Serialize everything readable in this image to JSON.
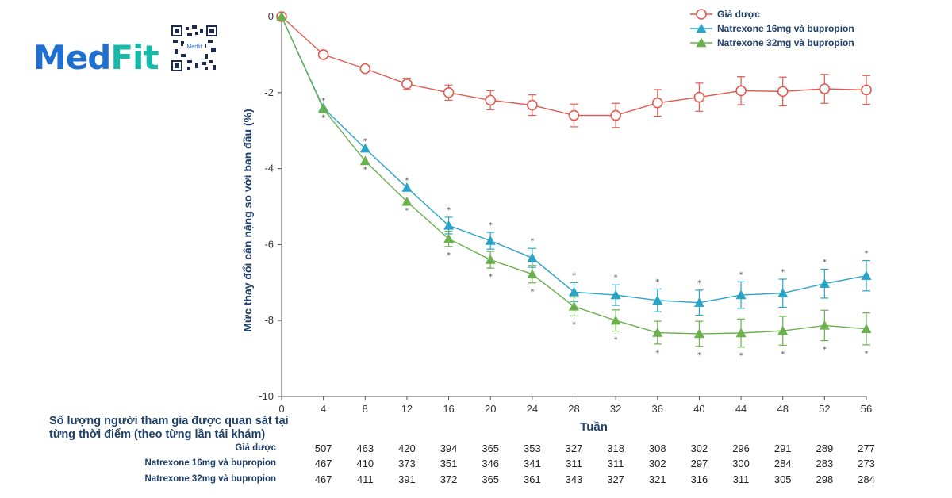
{
  "logo": {
    "text_main": "Med",
    "text_accent": "Fit",
    "qr_label": "Medfit"
  },
  "chart_data": {
    "type": "line",
    "title": "",
    "xlabel": "Tuần",
    "ylabel": "Mức thay đổi cân nặng so với ban đầu (%)",
    "x": [
      0,
      4,
      8,
      12,
      16,
      20,
      24,
      28,
      32,
      36,
      40,
      44,
      48,
      52,
      56
    ],
    "xticks": [
      "0",
      "4",
      "8",
      "12",
      "16",
      "20",
      "24",
      "28",
      "32",
      "36",
      "40",
      "44",
      "48",
      "52",
      "56"
    ],
    "yticks": [
      "0",
      "-2",
      "-4",
      "-6",
      "-8",
      "-10"
    ],
    "xlim": [
      0,
      56
    ],
    "ylim": [
      -10,
      0
    ],
    "legend_position": "top-right",
    "series": [
      {
        "name": "Giả dược",
        "color": "#e05a4f",
        "marker": "circle",
        "values": [
          0,
          -1.0,
          -1.37,
          -1.77,
          -2.0,
          -2.2,
          -2.33,
          -2.6,
          -2.6,
          -2.27,
          -2.12,
          -1.95,
          -1.97,
          -1.9,
          -1.93
        ],
        "errors": [
          0,
          0,
          0,
          0.15,
          0.2,
          0.25,
          0.27,
          0.3,
          0.32,
          0.35,
          0.37,
          0.37,
          0.38,
          0.38,
          0.38
        ],
        "significance": [
          false,
          false,
          false,
          false,
          false,
          false,
          false,
          false,
          false,
          false,
          false,
          false,
          false,
          false,
          false
        ]
      },
      {
        "name": "Natrexone 16mg và bupropion",
        "color": "#2aa3c8",
        "marker": "triangle",
        "values": [
          0,
          -2.4,
          -3.47,
          -4.5,
          -5.5,
          -5.9,
          -6.35,
          -7.25,
          -7.33,
          -7.47,
          -7.53,
          -7.33,
          -7.28,
          -7.03,
          -6.82
        ],
        "errors": [
          0,
          0,
          0,
          0,
          0.22,
          0.22,
          0.25,
          0.25,
          0.27,
          0.3,
          0.33,
          0.35,
          0.37,
          0.38,
          0.4
        ],
        "significance": [
          false,
          true,
          true,
          true,
          true,
          true,
          true,
          true,
          true,
          true,
          true,
          true,
          true,
          true,
          true
        ]
      },
      {
        "name": "Natrexone 32mg và bupropion",
        "color": "#6ab04c",
        "marker": "triangle",
        "values": [
          0,
          -2.43,
          -3.8,
          -4.87,
          -5.85,
          -6.4,
          -6.78,
          -7.63,
          -8.0,
          -8.32,
          -8.35,
          -8.33,
          -8.27,
          -8.13,
          -8.22
        ],
        "errors": [
          0,
          0,
          0,
          0,
          0.2,
          0.22,
          0.23,
          0.25,
          0.28,
          0.3,
          0.33,
          0.37,
          0.38,
          0.4,
          0.42
        ],
        "significance": [
          false,
          true,
          true,
          true,
          true,
          true,
          true,
          true,
          true,
          true,
          true,
          true,
          true,
          true,
          true
        ]
      }
    ]
  },
  "table": {
    "title": "Số lượng người tham gia được quan sát tại từng thời điểm (theo từng lần tái khám)",
    "rows": [
      {
        "label": "Giả dược",
        "values": [
          "507",
          "463",
          "420",
          "394",
          "365",
          "353",
          "327",
          "318",
          "308",
          "302",
          "296",
          "291",
          "289",
          "277"
        ]
      },
      {
        "label": "Natrexone 16mg và bupropion",
        "values": [
          "467",
          "410",
          "373",
          "351",
          "346",
          "341",
          "311",
          "311",
          "302",
          "297",
          "300",
          "284",
          "283",
          "273"
        ]
      },
      {
        "label": "Natrexone 32mg và bupropion",
        "values": [
          "467",
          "411",
          "391",
          "372",
          "365",
          "361",
          "343",
          "327",
          "321",
          "316",
          "311",
          "305",
          "298",
          "284"
        ]
      }
    ]
  }
}
